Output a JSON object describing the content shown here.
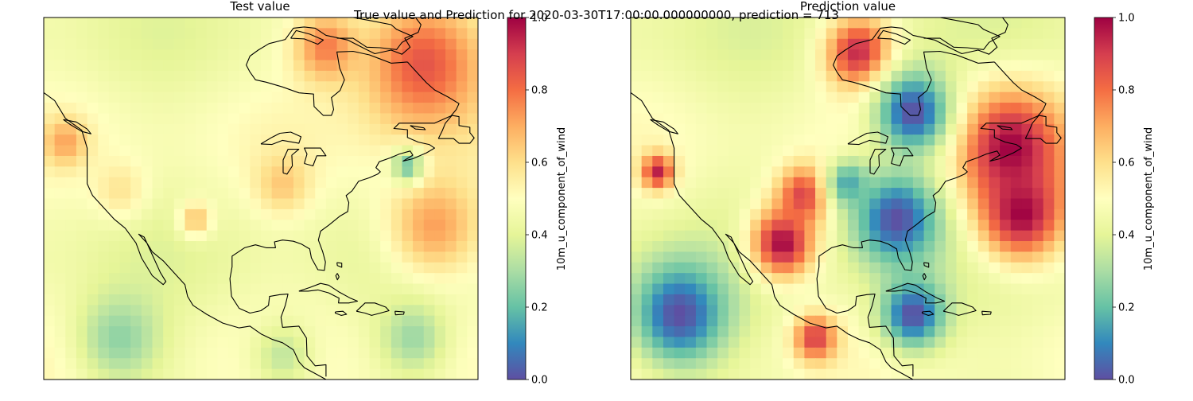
{
  "figure": {
    "suptitle": "True value and Prediction for 2020-03-30T17:00:00.000000000, prediction = 713"
  },
  "colormap": {
    "name": "Spectral_r",
    "stops": [
      "#5e4fa2",
      "#3288bd",
      "#66c2a5",
      "#abdda4",
      "#e6f598",
      "#ffffbf",
      "#fee08b",
      "#fdae61",
      "#f46d43",
      "#d53e4f",
      "#9e0142"
    ]
  },
  "chart_data": [
    {
      "type": "heatmap",
      "title": "Test value",
      "region": "North America / Gulf of Mexico / Caribbean",
      "grid": false,
      "colorbar": {
        "label": "10m_u_component_of_wind",
        "vmin": 0.0,
        "vmax": 1.0,
        "ticks": [
          "0.0",
          "0.2",
          "0.4",
          "0.6",
          "0.8",
          "1.0"
        ]
      },
      "hotspots": [
        {
          "lon": -62,
          "lat": 60,
          "value": 0.85,
          "radius": 12
        },
        {
          "lon": -80,
          "lat": 63,
          "value": 0.78,
          "radius": 6
        },
        {
          "lon": -128,
          "lat": 47,
          "value": 0.72,
          "radius": 4
        },
        {
          "lon": -60,
          "lat": 33,
          "value": 0.72,
          "radius": 9
        },
        {
          "lon": -88,
          "lat": 40,
          "value": 0.65,
          "radius": 5
        },
        {
          "lon": -104,
          "lat": 34,
          "value": 0.66,
          "radius": 3
        },
        {
          "lon": -118,
          "lat": 39,
          "value": 0.58,
          "radius": 5
        },
        {
          "lon": -65,
          "lat": 43,
          "value": 0.22,
          "radius": 3
        },
        {
          "lon": -118,
          "lat": 14,
          "value": 0.26,
          "radius": 8
        },
        {
          "lon": -64,
          "lat": 14,
          "value": 0.28,
          "radius": 6
        },
        {
          "lon": -88,
          "lat": 11,
          "value": 0.34,
          "radius": 6
        }
      ],
      "base_value": 0.46
    },
    {
      "type": "heatmap",
      "title": "Prediction value",
      "region": "North America / Gulf of Mexico / Caribbean",
      "grid": false,
      "colorbar": {
        "label": "10m_u_component_of_wind",
        "vmin": 0.0,
        "vmax": 1.0,
        "ticks": [
          "0.0",
          "0.2",
          "0.4",
          "0.6",
          "0.8",
          "1.0"
        ]
      },
      "hotspots": [
        {
          "lon": -62,
          "lat": 46,
          "value": 1.0,
          "radius": 10
        },
        {
          "lon": -60,
          "lat": 35,
          "value": 1.0,
          "radius": 8
        },
        {
          "lon": -104,
          "lat": 30,
          "value": 1.0,
          "radius": 6
        },
        {
          "lon": -100,
          "lat": 38,
          "value": 0.9,
          "radius": 5
        },
        {
          "lon": -127,
          "lat": 42,
          "value": 0.95,
          "radius": 3
        },
        {
          "lon": -98,
          "lat": 14,
          "value": 0.9,
          "radius": 4
        },
        {
          "lon": -90,
          "lat": 62,
          "value": 0.95,
          "radius": 6
        },
        {
          "lon": -80,
          "lat": 52,
          "value": 0.0,
          "radius": 7
        },
        {
          "lon": -83,
          "lat": 34,
          "value": 0.0,
          "radius": 8
        },
        {
          "lon": -123,
          "lat": 18,
          "value": 0.0,
          "radius": 9
        },
        {
          "lon": -80,
          "lat": 18,
          "value": 0.0,
          "radius": 6
        },
        {
          "lon": -92,
          "lat": 40,
          "value": 0.15,
          "radius": 4
        }
      ],
      "base_value": 0.45
    }
  ]
}
